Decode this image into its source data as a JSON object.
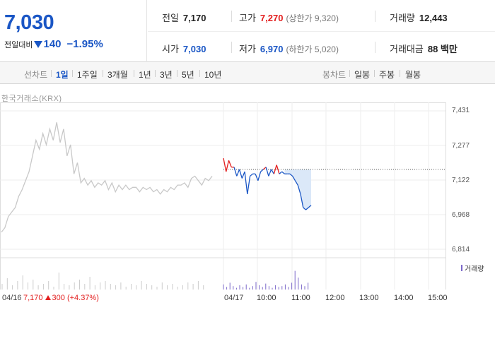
{
  "quote": {
    "price": "7,030",
    "change_label": "전일대비",
    "change_value": "140",
    "change_pct": "−1.95%",
    "prev_close_label": "전일",
    "prev_close": "7,170",
    "high_label": "고가",
    "high": "7,270",
    "upper_limit": "(상한가 9,320)",
    "volume_label": "거래량",
    "volume": "12,443",
    "open_label": "시가",
    "open": "7,030",
    "low_label": "저가",
    "low": "6,970",
    "lower_limit": "(하한가 5,020)",
    "turnover_label": "거래대금",
    "turnover": "88 백만"
  },
  "toolbar": {
    "line_chart_label": "선차트",
    "periods": [
      "1일",
      "1주일",
      "3개월",
      "1년",
      "3년",
      "5년",
      "10년"
    ],
    "active_period": "1일",
    "candle_label": "봉차트",
    "candle_periods": [
      "일봉",
      "주봉",
      "월봉"
    ]
  },
  "chart": {
    "source": "한국거래소(KRX)",
    "y_ticks": [
      "7,431",
      "7,277",
      "7,122",
      "6,968",
      "6,814"
    ],
    "volume_legend": "거래량",
    "prev_day_label": "04/16",
    "prev_day_close": "7,170",
    "prev_day_change": "300 (+4.37%)",
    "day_label": "04/17",
    "x_ticks": [
      "10:00",
      "11:00",
      "12:00",
      "13:00",
      "14:00",
      "15:00"
    ]
  },
  "colors": {
    "up": "#e31e1e",
    "down": "#1a56c5",
    "prev_day_line": "#c8c8c8",
    "volume": "#7b68c9"
  },
  "chart_data": {
    "type": "line",
    "ylim": [
      6814,
      7431
    ],
    "prev_close": 7170,
    "series": [
      {
        "name": "04/16",
        "values": [
          6890,
          6910,
          6960,
          6980,
          7000,
          7050,
          7080,
          7120,
          7160,
          7230,
          7300,
          7260,
          7330,
          7280,
          7350,
          7300,
          7380,
          7290,
          7350,
          7230,
          7280,
          7150,
          7200,
          7110,
          7130,
          7100,
          7120,
          7090,
          7110,
          7100,
          7120,
          7080,
          7110,
          7070,
          7100,
          7080,
          7100,
          7080,
          7090,
          7090,
          7070,
          7090,
          7080,
          7090,
          7070,
          7080,
          7060,
          7080,
          7070,
          7090,
          7080,
          7100,
          7100,
          7110,
          7090,
          7130,
          7140,
          7120,
          7100,
          7130,
          7120,
          7140
        ]
      },
      {
        "name": "04/17",
        "values": [
          7220,
          7160,
          7210,
          7180,
          7180,
          7140,
          7170,
          7130,
          7160,
          7060,
          7140,
          7150,
          7150,
          7120,
          7160,
          7170,
          7180,
          7140,
          7170,
          7150,
          7190,
          7150,
          7160,
          7150,
          7150,
          7150,
          7140,
          7120,
          7100,
          7060,
          7000,
          6990,
          7000,
          7010
        ]
      }
    ]
  }
}
